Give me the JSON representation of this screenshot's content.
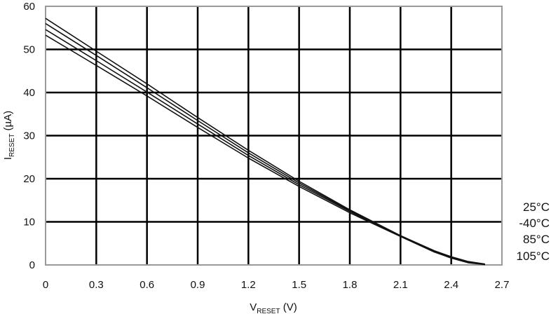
{
  "chart_data": {
    "type": "line",
    "xlabel": {
      "main": "V",
      "sub": "RESET",
      "unit": " (V)"
    },
    "ylabel": {
      "main": "I",
      "sub": "RESET",
      "unit": " (µA)"
    },
    "xlim": [
      0,
      2.7
    ],
    "ylim": [
      0,
      60
    ],
    "x_ticks": [
      "0",
      "0.3",
      "0.6",
      "0.9",
      "1.2",
      "1.5",
      "1.8",
      "2.1",
      "2.4",
      "2.7"
    ],
    "y_ticks": [
      "0",
      "10",
      "20",
      "30",
      "40",
      "50",
      "60"
    ],
    "grid": true,
    "legend_position": "right",
    "series": [
      {
        "name": "25°C",
        "x": [
          0,
          0.3,
          0.6,
          0.9,
          1.2,
          1.5,
          1.8,
          2.1,
          2.3,
          2.4,
          2.5,
          2.6
        ],
        "y": [
          57.2,
          49.6,
          42.0,
          34.2,
          26.6,
          19.4,
          12.8,
          6.8,
          3.3,
          1.9,
          0.8,
          0.2
        ]
      },
      {
        "name": "-40°C",
        "x": [
          0,
          0.3,
          0.6,
          0.9,
          1.2,
          1.5,
          1.8,
          2.1,
          2.3,
          2.4,
          2.5,
          2.6
        ],
        "y": [
          56.0,
          48.6,
          41.1,
          33.5,
          26.0,
          19.0,
          12.6,
          6.8,
          3.2,
          1.8,
          0.7,
          0.2
        ]
      },
      {
        "name": "85°C",
        "x": [
          0,
          0.3,
          0.6,
          0.9,
          1.2,
          1.5,
          1.8,
          2.1,
          2.3,
          2.4,
          2.5,
          2.6
        ],
        "y": [
          54.6,
          47.4,
          40.1,
          32.7,
          25.4,
          18.6,
          12.4,
          6.7,
          3.1,
          1.7,
          0.6,
          0.1
        ]
      },
      {
        "name": "105°C",
        "x": [
          0,
          0.3,
          0.6,
          0.9,
          1.2,
          1.5,
          1.8,
          2.1,
          2.3,
          2.4,
          2.5,
          2.6
        ],
        "y": [
          53.3,
          46.3,
          39.2,
          31.9,
          24.8,
          18.2,
          12.1,
          6.6,
          3.0,
          1.6,
          0.5,
          0.1
        ]
      }
    ]
  }
}
